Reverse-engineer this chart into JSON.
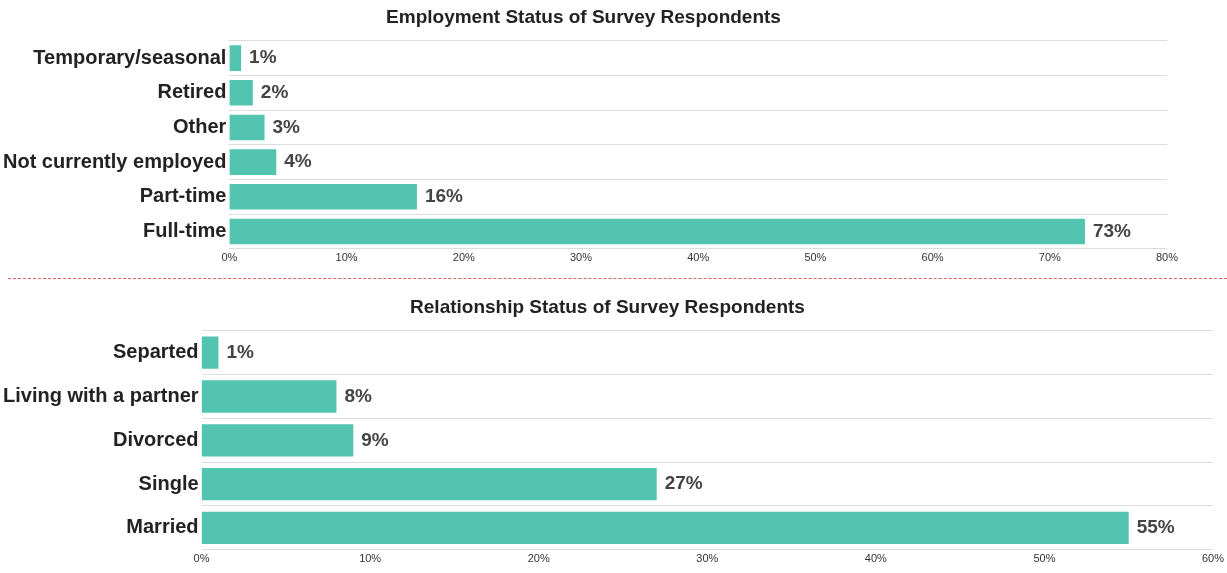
{
  "chart_data": [
    {
      "type": "bar",
      "orientation": "horizontal",
      "title": "Employment Status of Survey Respondents",
      "categories": [
        "Temporary/seasonal",
        "Retired",
        "Other",
        "Not currently employed",
        "Part-time",
        "Full-time"
      ],
      "values": [
        1,
        2,
        3,
        4,
        16,
        73
      ],
      "value_labels": [
        "1%",
        "2%",
        "3%",
        "4%",
        "16%",
        "73%"
      ],
      "color": "#52c4b0",
      "xlim": [
        0,
        80
      ],
      "xticks": [
        {
          "value": 0,
          "label": "0%"
        },
        {
          "value": 10,
          "label": "10%"
        },
        {
          "value": 20,
          "label": "20%"
        },
        {
          "value": 30,
          "label": "30%"
        },
        {
          "value": 40,
          "label": "40%"
        },
        {
          "value": 50,
          "label": "50%"
        },
        {
          "value": 60,
          "label": "60%"
        },
        {
          "value": 70,
          "label": "70%"
        },
        {
          "value": 80,
          "label": "80%"
        }
      ],
      "grid": "y"
    },
    {
      "type": "bar",
      "orientation": "horizontal",
      "title": "Relationship Status of Survey Respondents",
      "categories": [
        "Separted",
        "Living with a partner",
        "Divorced",
        "Single",
        "Married"
      ],
      "values": [
        1,
        8,
        9,
        27,
        55
      ],
      "value_labels": [
        "1%",
        "8%",
        "9%",
        "27%",
        "55%"
      ],
      "color": "#52c4b0",
      "xlim": [
        0,
        60
      ],
      "xticks": [
        {
          "value": 0,
          "label": "0%"
        },
        {
          "value": 10,
          "label": "10%"
        },
        {
          "value": 20,
          "label": "20%"
        },
        {
          "value": 30,
          "label": "30%"
        },
        {
          "value": 40,
          "label": "40%"
        },
        {
          "value": 50,
          "label": "50%"
        },
        {
          "value": 60,
          "label": "60%"
        }
      ],
      "grid": "y"
    }
  ]
}
